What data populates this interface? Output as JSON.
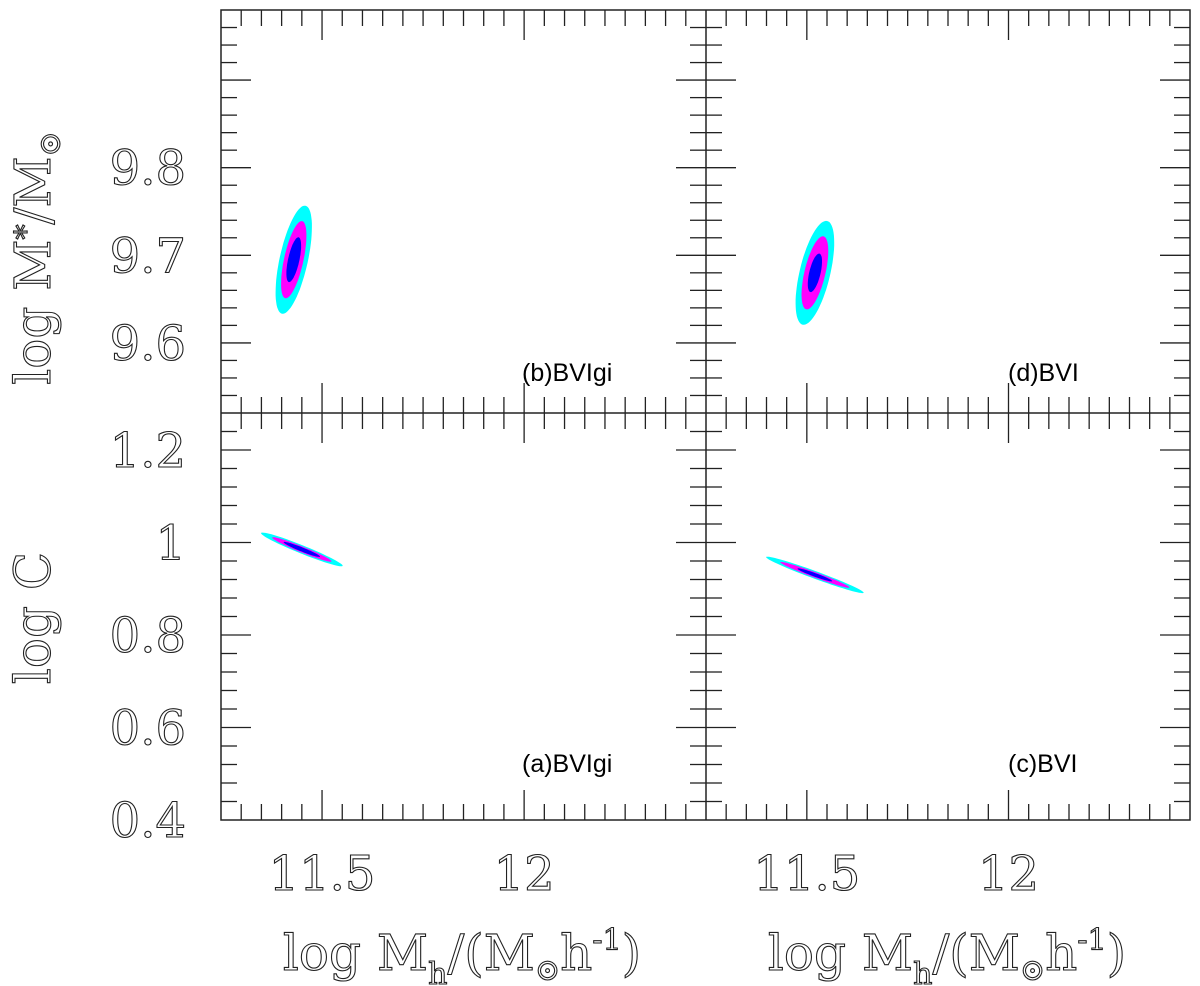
{
  "colors": {
    "c3": "#00ffff",
    "c2": "#ff00ff",
    "c1": "#0000ff",
    "frame": "#222222"
  },
  "chart_data": {
    "type": "contour",
    "description_levels": [
      "outer",
      "middle",
      "inner"
    ],
    "xlabel": "log M_h/(M_⊙h^-1)",
    "xlabel_parts": {
      "main": "log M",
      "sub": "h",
      "mid": "/(M",
      "sun": "⊙",
      "h": "h",
      "sup": "-1",
      "close": ")"
    },
    "xlim": [
      11.25,
      12.45
    ],
    "xticks": [
      "11.5",
      "12"
    ],
    "x_tick_values": [
      11.5,
      12.0
    ],
    "rows": [
      {
        "ylabel": "log M_*/M_⊙",
        "ylabel_parts": {
          "main": "log M",
          "sub": "*",
          "mid": "/M",
          "sun": "⊙"
        },
        "ylim": [
          9.52,
          9.98
        ],
        "yticks": [
          "9.6",
          "9.7",
          "9.8"
        ],
        "y_tick_values": [
          9.6,
          9.7,
          9.8
        ]
      },
      {
        "ylabel": "log C",
        "ylim": [
          0.4,
          1.28
        ],
        "yticks": [
          "0.4",
          "0.6",
          "0.8",
          "1",
          "1.2"
        ],
        "y_tick_values": [
          0.4,
          0.6,
          0.8,
          1.0,
          1.2
        ]
      }
    ],
    "panels": [
      {
        "id": "b",
        "label": "(b)BVIgi",
        "row": 0,
        "col": 0,
        "contours": [
          {
            "level": "outer",
            "cx": 11.43,
            "cy": 9.695,
            "a": 0.14,
            "b": 0.035,
            "angle": 78
          },
          {
            "level": "middle",
            "cx": 11.43,
            "cy": 9.695,
            "a": 0.1,
            "b": 0.024,
            "angle": 78
          },
          {
            "level": "inner",
            "cx": 11.43,
            "cy": 9.695,
            "a": 0.058,
            "b": 0.014,
            "angle": 78
          }
        ]
      },
      {
        "id": "d",
        "label": "(d)BVI",
        "row": 0,
        "col": 1,
        "contours": [
          {
            "level": "outer",
            "cx": 11.52,
            "cy": 9.68,
            "a": 0.135,
            "b": 0.038,
            "angle": 77
          },
          {
            "level": "middle",
            "cx": 11.52,
            "cy": 9.68,
            "a": 0.095,
            "b": 0.026,
            "angle": 77
          },
          {
            "level": "inner",
            "cx": 11.52,
            "cy": 9.68,
            "a": 0.05,
            "b": 0.014,
            "angle": 77
          }
        ]
      },
      {
        "id": "a",
        "label": "(a)BVIgi",
        "row": 1,
        "col": 0,
        "contours": [
          {
            "level": "outer",
            "cx": 11.45,
            "cy": 0.985,
            "a": 0.135,
            "b": 0.018,
            "angle": -42
          },
          {
            "level": "middle",
            "cx": 11.45,
            "cy": 0.985,
            "a": 0.098,
            "b": 0.013,
            "angle": -42
          },
          {
            "level": "inner",
            "cx": 11.45,
            "cy": 0.985,
            "a": 0.06,
            "b": 0.009,
            "angle": -42
          }
        ]
      },
      {
        "id": "c",
        "label": "(c)BVI",
        "row": 1,
        "col": 1,
        "contours": [
          {
            "level": "outer",
            "cx": 11.52,
            "cy": 0.93,
            "a": 0.155,
            "b": 0.017,
            "angle": -39
          },
          {
            "level": "middle",
            "cx": 11.52,
            "cy": 0.93,
            "a": 0.11,
            "b": 0.012,
            "angle": -39
          },
          {
            "level": "inner",
            "cx": 11.52,
            "cy": 0.93,
            "a": 0.055,
            "b": 0.008,
            "angle": -39
          }
        ]
      }
    ]
  }
}
